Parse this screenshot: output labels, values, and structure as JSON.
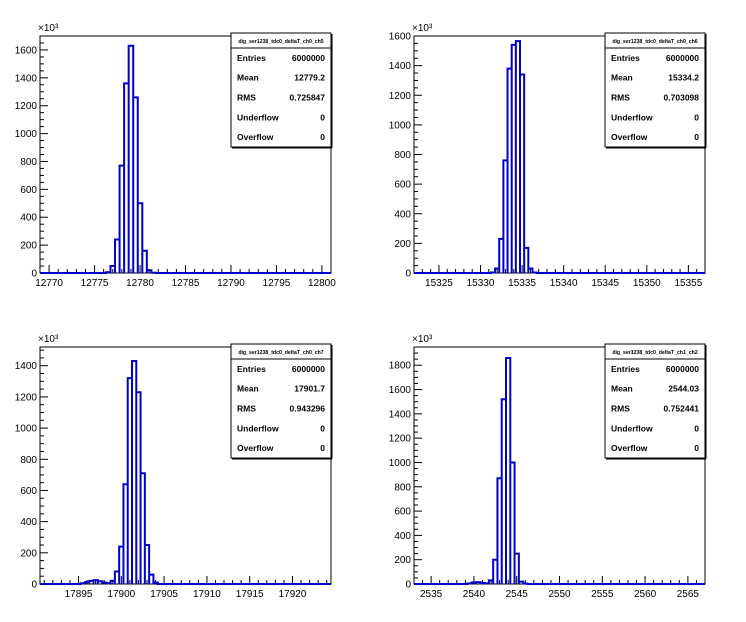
{
  "chart_data": [
    {
      "type": "histogram",
      "title": "",
      "xlabel": "",
      "ylabel": "",
      "y_exponent_label": "×10³",
      "xlim": [
        12769,
        12801
      ],
      "ylim": [
        0,
        1700
      ],
      "x_ticks": [
        12770,
        12775,
        12780,
        12785,
        12790,
        12795,
        12800
      ],
      "y_ticks": [
        0,
        200,
        400,
        600,
        800,
        1000,
        1200,
        1400,
        1600
      ],
      "bin_width": 0.5,
      "bins": [
        {
          "x": 12776.5,
          "y": 5
        },
        {
          "x": 12777.0,
          "y": 50
        },
        {
          "x": 12777.5,
          "y": 240
        },
        {
          "x": 12778.0,
          "y": 770
        },
        {
          "x": 12778.5,
          "y": 1360
        },
        {
          "x": 12779.0,
          "y": 1630
        },
        {
          "x": 12779.5,
          "y": 1260
        },
        {
          "x": 12780.0,
          "y": 500
        },
        {
          "x": 12780.5,
          "y": 160
        },
        {
          "x": 12781.0,
          "y": 20
        },
        {
          "x": 12781.5,
          "y": 2
        }
      ],
      "stats": {
        "name": "dig_ser1238_tdc0_deltaT_ch0_ch5",
        "rows": [
          {
            "label": "Entries",
            "value": "6000000"
          },
          {
            "label": "Mean",
            "value": "12779.2"
          },
          {
            "label": "RMS",
            "value": "0.725847"
          },
          {
            "label": "Underflow",
            "value": "0"
          },
          {
            "label": "Overflow",
            "value": "0"
          }
        ]
      }
    },
    {
      "type": "histogram",
      "title": "",
      "xlabel": "",
      "ylabel": "",
      "y_exponent_label": "×10³",
      "xlim": [
        15322,
        15357
      ],
      "ylim": [
        0,
        1600
      ],
      "x_ticks": [
        15325,
        15330,
        15335,
        15340,
        15345,
        15350,
        15355
      ],
      "y_ticks": [
        0,
        200,
        400,
        600,
        800,
        1000,
        1200,
        1400,
        1600
      ],
      "bin_width": 0.5,
      "bins": [
        {
          "x": 15331.5,
          "y": 3
        },
        {
          "x": 15332.0,
          "y": 30
        },
        {
          "x": 15332.5,
          "y": 230
        },
        {
          "x": 15333.0,
          "y": 760
        },
        {
          "x": 15333.5,
          "y": 1380
        },
        {
          "x": 15334.0,
          "y": 1540
        },
        {
          "x": 15334.5,
          "y": 1565
        },
        {
          "x": 15335.0,
          "y": 1340
        },
        {
          "x": 15335.5,
          "y": 170
        },
        {
          "x": 15336.0,
          "y": 30
        },
        {
          "x": 15336.5,
          "y": 3
        }
      ],
      "stats": {
        "name": "dig_ser1238_tdc0_deltaT_ch0_ch6",
        "rows": [
          {
            "label": "Entries",
            "value": "6000000"
          },
          {
            "label": "Mean",
            "value": "15334.2"
          },
          {
            "label": "RMS",
            "value": "0.703098"
          },
          {
            "label": "Underflow",
            "value": "0"
          },
          {
            "label": "Overflow",
            "value": "0"
          }
        ]
      }
    },
    {
      "type": "histogram",
      "title": "",
      "xlabel": "",
      "ylabel": "",
      "y_exponent_label": "×10³",
      "xlim": [
        17890.5,
        17924.5
      ],
      "ylim": [
        0,
        1520
      ],
      "x_ticks": [
        17895,
        17900,
        17905,
        17910,
        17915,
        17920
      ],
      "y_ticks": [
        0,
        200,
        400,
        600,
        800,
        1000,
        1200,
        1400
      ],
      "bin_width": 0.5,
      "bins": [
        {
          "x": 17895.5,
          "y": 5
        },
        {
          "x": 17896.0,
          "y": 12
        },
        {
          "x": 17896.5,
          "y": 20
        },
        {
          "x": 17897.0,
          "y": 25
        },
        {
          "x": 17897.5,
          "y": 18
        },
        {
          "x": 17898.0,
          "y": 10
        },
        {
          "x": 17898.5,
          "y": 5
        },
        {
          "x": 17899.0,
          "y": 20
        },
        {
          "x": 17899.5,
          "y": 80
        },
        {
          "x": 17900.0,
          "y": 240
        },
        {
          "x": 17900.5,
          "y": 640
        },
        {
          "x": 17901.0,
          "y": 1320
        },
        {
          "x": 17901.5,
          "y": 1430
        },
        {
          "x": 17902.0,
          "y": 1230
        },
        {
          "x": 17902.5,
          "y": 710
        },
        {
          "x": 17903.0,
          "y": 250
        },
        {
          "x": 17903.5,
          "y": 60
        },
        {
          "x": 17904.0,
          "y": 10
        }
      ],
      "stats": {
        "name": "dig_ser1238_tdc0_deltaT_ch0_ch7",
        "rows": [
          {
            "label": "Entries",
            "value": "6000000"
          },
          {
            "label": "Mean",
            "value": "17901.7"
          },
          {
            "label": "RMS",
            "value": "0.943296"
          },
          {
            "label": "Underflow",
            "value": "0"
          },
          {
            "label": "Overflow",
            "value": "0"
          }
        ]
      }
    },
    {
      "type": "histogram",
      "title": "",
      "xlabel": "",
      "ylabel": "",
      "y_exponent_label": "×10³",
      "xlim": [
        2533,
        2567
      ],
      "ylim": [
        0,
        1950
      ],
      "x_ticks": [
        2535,
        2540,
        2545,
        2550,
        2555,
        2560,
        2565
      ],
      "y_ticks": [
        0,
        200,
        400,
        600,
        800,
        1000,
        1200,
        1400,
        1600,
        1800
      ],
      "bin_width": 0.5,
      "bins": [
        {
          "x": 2539.5,
          "y": 5
        },
        {
          "x": 2540.0,
          "y": 12
        },
        {
          "x": 2540.5,
          "y": 15
        },
        {
          "x": 2541.0,
          "y": 8
        },
        {
          "x": 2541.5,
          "y": 5
        },
        {
          "x": 2542.0,
          "y": 30
        },
        {
          "x": 2542.5,
          "y": 200
        },
        {
          "x": 2543.0,
          "y": 870
        },
        {
          "x": 2543.5,
          "y": 1520
        },
        {
          "x": 2544.0,
          "y": 1860
        },
        {
          "x": 2544.5,
          "y": 1000
        },
        {
          "x": 2545.0,
          "y": 250
        },
        {
          "x": 2545.5,
          "y": 20
        },
        {
          "x": 2546.0,
          "y": 3
        }
      ],
      "stats": {
        "name": "dig_ser1238_tdc0_deltaT_ch1_ch2",
        "rows": [
          {
            "label": "Entries",
            "value": "6000000"
          },
          {
            "label": "Mean",
            "value": "2544.03"
          },
          {
            "label": "RMS",
            "value": "0.752441"
          },
          {
            "label": "Underflow",
            "value": "0"
          },
          {
            "label": "Overflow",
            "value": "0"
          }
        ]
      }
    }
  ]
}
